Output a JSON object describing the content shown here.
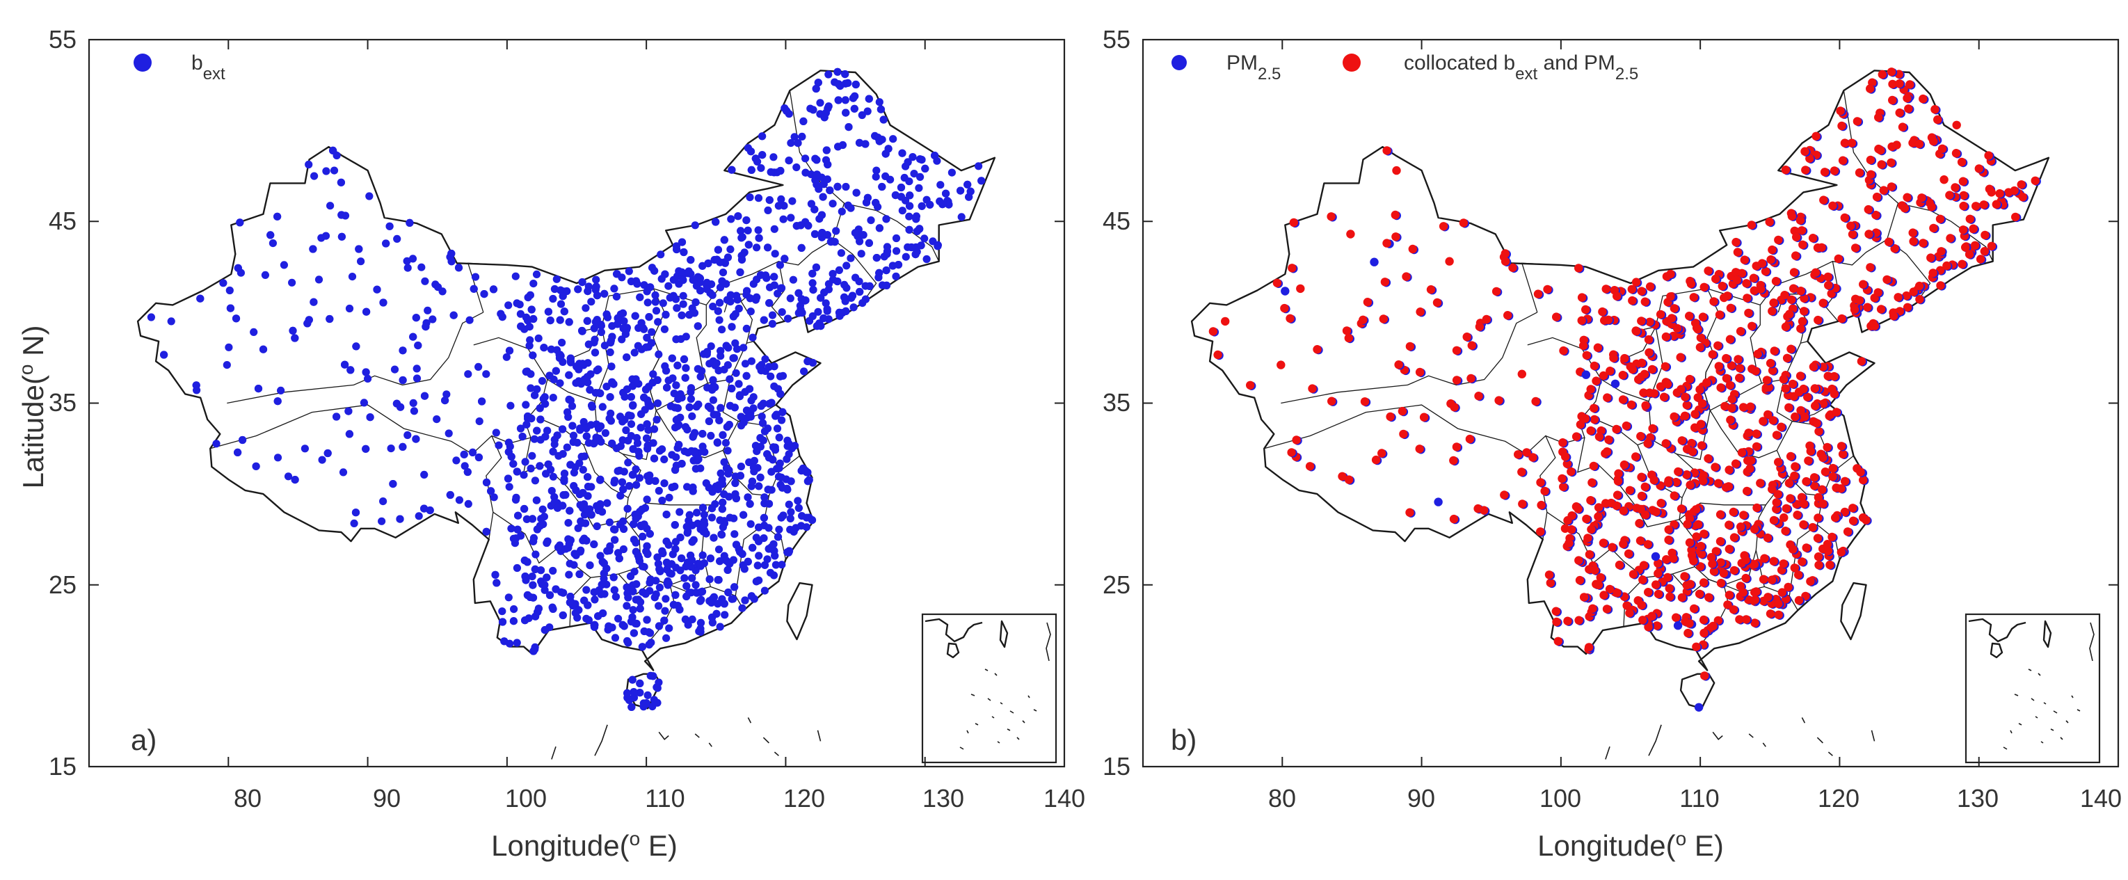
{
  "panels": [
    {
      "tag": "a)",
      "ylabel_main": "Latitude(",
      "ylabel_sup": "o",
      "ylabel_end": " N)",
      "xlabel_main": "Longitude(",
      "xlabel_sup": "o",
      "xlabel_end": " E)",
      "xticks": [
        "80",
        "90",
        "100",
        "110",
        "120",
        "130",
        "140"
      ],
      "yticks": [
        "15",
        "25",
        "35",
        "45",
        "55"
      ],
      "legend": [
        {
          "symbol": "blue-dot",
          "label": "b",
          "sub": "ext",
          "rest": "",
          "sub2": "",
          "color": "#1f1fe0"
        }
      ]
    },
    {
      "tag": "b)",
      "xlabel_main": "Longitude(",
      "xlabel_sup": "o",
      "xlabel_end": " E)",
      "xticks": [
        "80",
        "90",
        "100",
        "110",
        "120",
        "130",
        "140"
      ],
      "yticks": [
        "15",
        "25",
        "35",
        "45",
        "55"
      ],
      "legend": [
        {
          "symbol": "blue-dot",
          "label": "PM",
          "sub": "2.5",
          "rest": "",
          "sub2": "",
          "color": "#1f1fe0"
        },
        {
          "symbol": "red-dot",
          "label": "collocated b",
          "sub": "ext",
          "rest": " and PM",
          "sub2": "2.5",
          "color": "#ee1111"
        }
      ]
    }
  ],
  "chart_data": [
    {
      "type": "scatter",
      "title": "",
      "xlabel": "Longitude(o E)",
      "ylabel": "Latitude(o N)",
      "xlim": [
        70,
        140
      ],
      "ylim": [
        15,
        55
      ],
      "series": [
        {
          "name": "bext",
          "color": "#1f1fe0",
          "count_note": "dense national station network",
          "x": [
            80.1,
            83.2,
            87.0,
            87.6,
            86.5,
            89.5,
            94.3,
            91.1,
            98.5,
            101.7,
            103.8,
            106.3,
            108.9,
            111.7,
            113.6,
            116.4,
            117.2,
            120.1,
            121.5,
            123.4,
            125.3,
            126.6,
            129.6,
            127.5,
            124.1,
            114.3,
            113.3,
            110.3,
            104.1,
            102.7,
            106.7,
            112.9,
            118.8,
            119.3,
            121.5,
            116.0,
            113.0,
            108.3,
            110.3,
            111.6,
            109.8,
            100.3,
            91.0,
            85.5,
            97.2,
            75.9,
            79.9,
            84.0
          ],
          "y": [
            41.2,
            43.8,
            44.2,
            47.8,
            41.8,
            42.8,
            40.1,
            29.6,
            36.6,
            36.6,
            36.1,
            38.5,
            34.3,
            40.8,
            34.8,
            39.9,
            39.1,
            30.3,
            31.2,
            41.8,
            43.9,
            45.8,
            44.6,
            47.3,
            49.2,
            30.6,
            23.1,
            20.0,
            30.7,
            25.0,
            26.6,
            28.2,
            32.0,
            26.1,
            28.7,
            28.7,
            22.8,
            22.8,
            25.3,
            27.2,
            18.3,
            28.1,
            28.5,
            32.5,
            36.6,
            39.5,
            37.1,
            42.6
          ]
        },
        null
      ]
    },
    {
      "type": "scatter",
      "title": "",
      "xlabel": "Longitude(o E)",
      "ylabel": "",
      "xlim": [
        70,
        140
      ],
      "ylim": [
        15,
        55
      ],
      "series": [
        {
          "name": "PM2.5",
          "color": "#1f1fe0",
          "x": [
            80.1,
            87.6,
            86.5,
            91.1,
            101.7,
            103.8,
            106.3,
            108.9,
            113.6,
            116.4,
            117.2,
            120.1,
            121.5,
            123.4,
            125.3,
            126.6,
            129.6,
            114.3,
            113.3,
            110.3,
            104.1,
            102.7,
            106.7,
            112.9,
            118.8,
            119.3,
            108.3,
            109.8
          ],
          "y": [
            41.2,
            43.8,
            42.8,
            29.6,
            36.6,
            36.1,
            38.5,
            34.3,
            34.8,
            39.9,
            39.1,
            30.3,
            31.2,
            41.8,
            43.9,
            45.8,
            44.6,
            30.6,
            23.1,
            20.0,
            30.7,
            25.0,
            26.6,
            28.2,
            32.0,
            26.1,
            22.8,
            18.3
          ]
        },
        {
          "name": "collocated bext and PM2.5",
          "color": "#ee1111",
          "x": [
            75.9,
            79.9,
            81.3,
            84.9,
            87.5,
            88.2,
            92.0,
            97.2,
            100.3,
            102.7,
            104.1,
            106.3,
            108.9,
            110.3,
            111.7,
            112.9,
            113.3,
            113.6,
            114.3,
            116.0,
            116.4,
            117.2,
            118.8,
            119.3,
            120.1,
            121.5,
            123.4,
            125.3,
            126.6,
            127.5,
            129.6,
            130.9,
            124.1,
            128.4
          ],
          "y": [
            39.5,
            37.1,
            41.3,
            44.3,
            43.8,
            47.8,
            42.8,
            36.6,
            28.1,
            25.0,
            30.7,
            38.5,
            34.3,
            20.0,
            40.8,
            28.2,
            23.1,
            34.8,
            30.6,
            28.7,
            39.9,
            39.1,
            32.0,
            26.1,
            30.3,
            31.2,
            41.8,
            43.9,
            45.8,
            47.3,
            44.6,
            46.6,
            49.2,
            50.3
          ]
        }
      ]
    }
  ]
}
